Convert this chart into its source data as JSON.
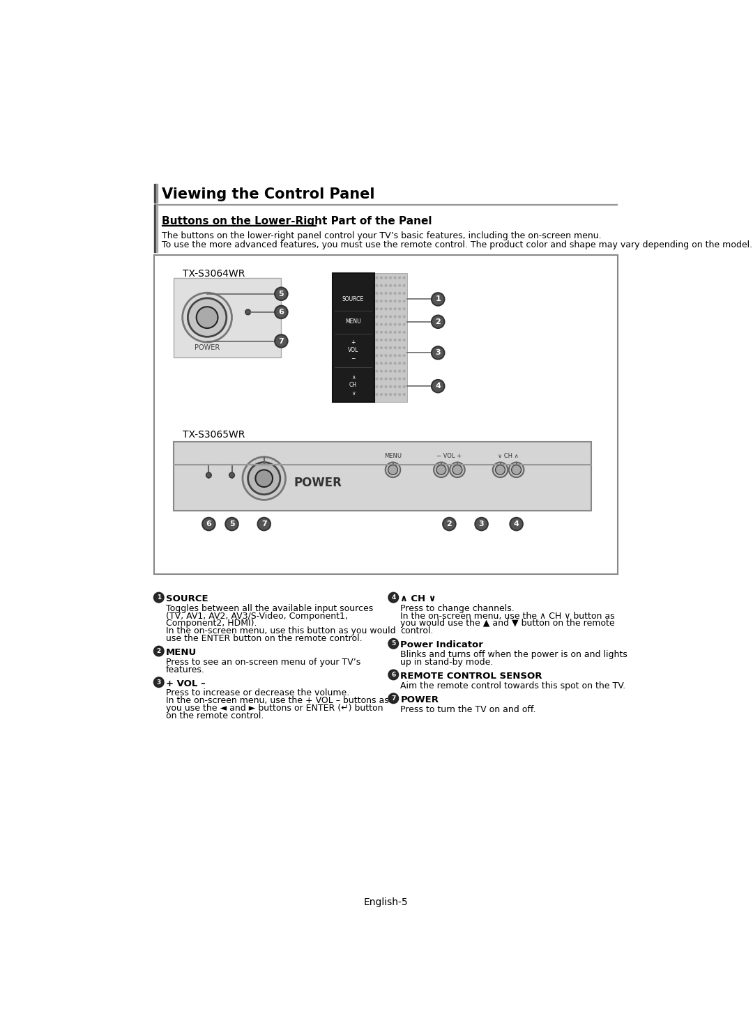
{
  "title": "Viewing the Control Panel",
  "subtitle": "Buttons on the Lower-Right Part of the Panel",
  "intro_line1": "The buttons on the lower-right panel control your TV’s basic features, including the on-screen menu.",
  "intro_line2": "To use the more advanced features, you must use the remote control. The product color and shape may vary depending on the model.",
  "model1": "TX-S3064WR",
  "model2": "TX-S3065WR",
  "footer": "English-5",
  "descriptions": [
    {
      "num": "1",
      "title": "SOURCE",
      "lines": [
        "Toggles between all the available input sources",
        "(TV, AV1, AV2, AV3/S-Video, Component1,",
        "Component2, HDMI).",
        "In the on-screen menu, use this button as you would",
        "use the ENTER button on the remote control."
      ]
    },
    {
      "num": "2",
      "title": "MENU",
      "lines": [
        "Press to see an on-screen menu of your TV’s",
        "features."
      ]
    },
    {
      "num": "3",
      "title": "+ VOL –",
      "lines": [
        "Press to increase or decrease the volume.",
        "In the on-screen menu, use the + VOL – buttons as",
        "you use the ◄ and ► buttons or ENTER (↵) button",
        "on the remote control."
      ]
    },
    {
      "num": "4",
      "title": "∧ CH ∨",
      "lines": [
        "Press to change channels.",
        "In the on-screen menu, use the ∧ CH ∨ button as",
        "you would use the ▲ and ▼ button on the remote",
        "control."
      ]
    },
    {
      "num": "5",
      "title": "Power Indicator",
      "lines": [
        "Blinks and turns off when the power is on and lights",
        "up in stand-by mode."
      ]
    },
    {
      "num": "6",
      "title": "REMOTE CONTROL SENSOR",
      "lines": [
        "Aim the remote control towards this spot on the TV."
      ]
    },
    {
      "num": "7",
      "title": "POWER",
      "lines": [
        "Press to turn the TV on and off."
      ]
    }
  ],
  "bg_color": "#ffffff",
  "text_color": "#000000"
}
